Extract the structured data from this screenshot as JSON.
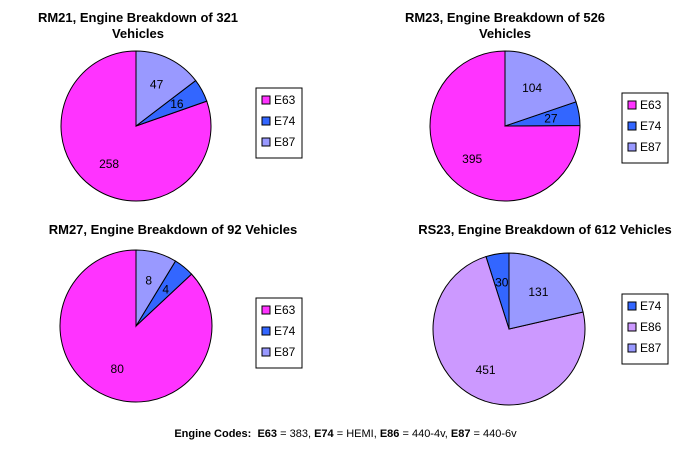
{
  "chart_data": [
    {
      "type": "pie",
      "title": "RM21, Engine Breakdown of 321 Vehicles",
      "title_lines": [
        "RM21, Engine Breakdown of 321",
        "Vehicles"
      ],
      "slices": [
        {
          "name": "E63",
          "value": 258,
          "color": "#ff33ff"
        },
        {
          "name": "E74",
          "value": 16,
          "color": "#3366ff"
        },
        {
          "name": "E87",
          "value": 47,
          "color": "#9999ff"
        }
      ],
      "legend": [
        "E63",
        "E74",
        "E87"
      ],
      "legend_placement": "right"
    },
    {
      "type": "pie",
      "title": "RM23, Engine Breakdown of 526 Vehicles",
      "title_lines": [
        "RM23, Engine Breakdown of 526",
        "Vehicles"
      ],
      "slices": [
        {
          "name": "E63",
          "value": 395,
          "color": "#ff33ff"
        },
        {
          "name": "E74",
          "value": 27,
          "color": "#3366ff"
        },
        {
          "name": "E87",
          "value": 104,
          "color": "#9999ff"
        }
      ],
      "legend": [
        "E63",
        "E74",
        "E87"
      ],
      "legend_placement": "right"
    },
    {
      "type": "pie",
      "title": "RM27, Engine Breakdown of 92 Vehicles",
      "title_lines": [
        "RM27, Engine Breakdown of 92 Vehicles"
      ],
      "slices": [
        {
          "name": "E63",
          "value": 80,
          "color": "#ff33ff"
        },
        {
          "name": "E74",
          "value": 4,
          "color": "#3366ff"
        },
        {
          "name": "E87",
          "value": 8,
          "color": "#9999ff"
        }
      ],
      "legend": [
        "E63",
        "E74",
        "E87"
      ],
      "legend_placement": "right"
    },
    {
      "type": "pie",
      "title": "RS23, Engine Breakdown of 612 Vehicles",
      "title_lines": [
        "RS23, Engine Breakdown of 612 Vehicles"
      ],
      "slices": [
        {
          "name": "E74",
          "value": 30,
          "color": "#3366ff"
        },
        {
          "name": "E86",
          "value": 451,
          "color": "#cc99ff"
        },
        {
          "name": "E87",
          "value": 131,
          "color": "#9999ff"
        }
      ],
      "legend": [
        "E74",
        "E86",
        "E87"
      ],
      "legend_placement": "right"
    }
  ],
  "footer": {
    "prefix": "Engine Codes:",
    "codes": [
      {
        "code": "E63",
        "meaning": "383"
      },
      {
        "code": "E74",
        "meaning": "HEMI"
      },
      {
        "code": "E86",
        "meaning": "440-4v"
      },
      {
        "code": "E87",
        "meaning": "440-6v"
      }
    ]
  }
}
